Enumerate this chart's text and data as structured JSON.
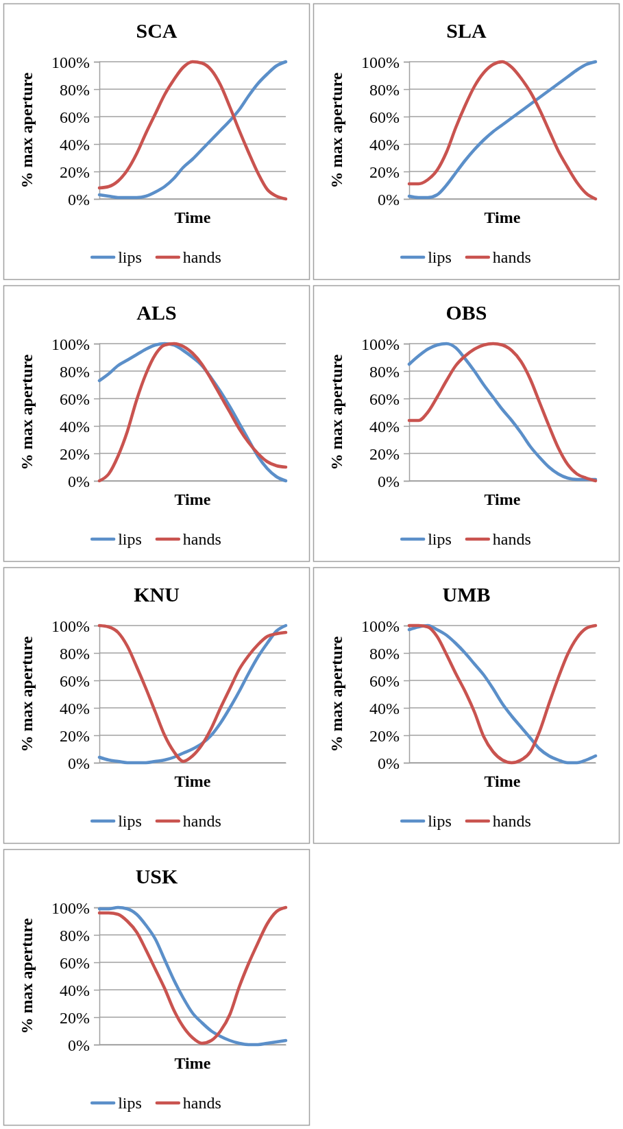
{
  "chart_data": [
    {
      "type": "line",
      "title": "SCA",
      "xlabel": "Time",
      "ylabel": "% max aperture",
      "categories": [
        null,
        null,
        null,
        null,
        null,
        null,
        null,
        null,
        null,
        null,
        null,
        null,
        null,
        null,
        null,
        null,
        null,
        null,
        null,
        null,
        null
      ],
      "series": [
        {
          "name": "lips",
          "color": "#5b8fc9",
          "values": [
            3,
            2,
            1,
            1,
            1,
            2,
            5,
            9,
            15,
            23,
            29,
            36,
            43,
            50,
            57,
            65,
            75,
            84,
            91,
            97,
            100
          ]
        },
        {
          "name": "hands",
          "color": "#c9534f",
          "values": [
            8,
            9,
            13,
            21,
            33,
            48,
            62,
            76,
            87,
            96,
            100,
            99,
            94,
            83,
            67,
            50,
            34,
            19,
            7,
            2,
            0
          ]
        }
      ],
      "ylim": [
        0,
        100
      ],
      "yticks": [
        {
          "value": 0,
          "label": "0%"
        },
        {
          "value": 20,
          "label": "20%"
        },
        {
          "value": 40,
          "label": "40%"
        },
        {
          "value": 60,
          "label": "60%"
        },
        {
          "value": 80,
          "label": "80%"
        },
        {
          "value": 100,
          "label": "100%"
        }
      ],
      "grid": "y",
      "legend": "bottom",
      "tick_labels": "y"
    },
    {
      "type": "line",
      "title": "SLA",
      "xlabel": "Time",
      "ylabel": "% max aperture",
      "categories": [
        null,
        null,
        null,
        null,
        null,
        null,
        null,
        null,
        null,
        null,
        null,
        null,
        null,
        null,
        null,
        null,
        null,
        null,
        null,
        null,
        null
      ],
      "series": [
        {
          "name": "lips",
          "color": "#5b8fc9",
          "values": [
            2,
            1,
            1,
            3,
            10,
            19,
            28,
            36,
            43,
            49,
            54,
            59,
            64,
            69,
            74,
            79,
            84,
            89,
            94,
            98,
            100
          ]
        },
        {
          "name": "hands",
          "color": "#c9534f",
          "values": [
            11,
            11,
            14,
            21,
            34,
            52,
            68,
            82,
            92,
            98,
            100,
            96,
            88,
            78,
            65,
            50,
            35,
            23,
            12,
            4,
            0
          ]
        }
      ],
      "ylim": [
        0,
        100
      ],
      "yticks": [
        {
          "value": 0,
          "label": "0%"
        },
        {
          "value": 20,
          "label": "20%"
        },
        {
          "value": 40,
          "label": "40%"
        },
        {
          "value": 60,
          "label": "60%"
        },
        {
          "value": 80,
          "label": "80%"
        },
        {
          "value": 100,
          "label": "100%"
        }
      ],
      "grid": "y",
      "legend": "bottom",
      "tick_labels": "y"
    },
    {
      "type": "line",
      "title": "ALS",
      "xlabel": "Time",
      "ylabel": "% max aperture",
      "categories": [
        null,
        null,
        null,
        null,
        null,
        null,
        null,
        null,
        null,
        null,
        null,
        null,
        null,
        null,
        null,
        null,
        null,
        null,
        null,
        null,
        null
      ],
      "series": [
        {
          "name": "lips",
          "color": "#5b8fc9",
          "values": [
            73,
            78,
            84,
            88,
            92,
            96,
            99,
            100,
            99,
            95,
            90,
            84,
            75,
            65,
            54,
            42,
            30,
            18,
            9,
            3,
            0
          ]
        },
        {
          "name": "hands",
          "color": "#c9534f",
          "values": [
            0,
            5,
            18,
            36,
            59,
            78,
            92,
            99,
            100,
            98,
            93,
            85,
            74,
            62,
            50,
            38,
            28,
            20,
            14,
            11,
            10
          ]
        }
      ],
      "ylim": [
        0,
        100
      ],
      "yticks": [
        {
          "value": 0,
          "label": "0%"
        },
        {
          "value": 20,
          "label": "20%"
        },
        {
          "value": 40,
          "label": "40%"
        },
        {
          "value": 60,
          "label": "60%"
        },
        {
          "value": 80,
          "label": "80%"
        },
        {
          "value": 100,
          "label": "100%"
        }
      ],
      "grid": "y",
      "legend": "bottom",
      "tick_labels": "y"
    },
    {
      "type": "line",
      "title": "OBS",
      "xlabel": "Time",
      "ylabel": "% max aperture",
      "categories": [
        null,
        null,
        null,
        null,
        null,
        null,
        null,
        null,
        null,
        null,
        null,
        null,
        null,
        null,
        null,
        null,
        null,
        null,
        null,
        null,
        null
      ],
      "series": [
        {
          "name": "lips",
          "color": "#5b8fc9",
          "values": [
            85,
            91,
            96,
            99,
            100,
            97,
            89,
            80,
            70,
            61,
            52,
            44,
            35,
            25,
            17,
            10,
            5,
            2,
            1,
            1,
            1
          ]
        },
        {
          "name": "hands",
          "color": "#c9534f",
          "values": [
            44,
            44,
            50,
            61,
            73,
            84,
            91,
            96,
            99,
            100,
            99,
            95,
            87,
            74,
            57,
            40,
            24,
            12,
            5,
            2,
            0
          ]
        }
      ],
      "ylim": [
        0,
        100
      ],
      "yticks": [
        {
          "value": 0,
          "label": "0%"
        },
        {
          "value": 20,
          "label": "20%"
        },
        {
          "value": 40,
          "label": "40%"
        },
        {
          "value": 60,
          "label": "60%"
        },
        {
          "value": 80,
          "label": "80%"
        },
        {
          "value": 100,
          "label": "100%"
        }
      ],
      "grid": "y",
      "legend": "bottom",
      "tick_labels": "y"
    },
    {
      "type": "line",
      "title": "KNU",
      "xlabel": "Time",
      "ylabel": "% max aperture",
      "categories": [
        null,
        null,
        null,
        null,
        null,
        null,
        null,
        null,
        null,
        null,
        null,
        null,
        null,
        null,
        null,
        null,
        null,
        null,
        null,
        null,
        null
      ],
      "series": [
        {
          "name": "lips",
          "color": "#5b8fc9",
          "values": [
            4,
            2,
            1,
            0,
            0,
            0,
            1,
            2,
            4,
            7,
            10,
            14,
            20,
            29,
            40,
            52,
            65,
            77,
            87,
            96,
            100
          ]
        },
        {
          "name": "hands",
          "color": "#c9534f",
          "values": [
            100,
            99,
            95,
            85,
            70,
            54,
            37,
            20,
            8,
            1,
            5,
            13,
            25,
            40,
            54,
            68,
            78,
            86,
            92,
            94,
            95
          ]
        }
      ],
      "ylim": [
        0,
        100
      ],
      "yticks": [
        {
          "value": 0,
          "label": "0%"
        },
        {
          "value": 20,
          "label": "20%"
        },
        {
          "value": 40,
          "label": "40%"
        },
        {
          "value": 60,
          "label": "60%"
        },
        {
          "value": 80,
          "label": "80%"
        },
        {
          "value": 100,
          "label": "100%"
        }
      ],
      "grid": "y",
      "legend": "bottom",
      "tick_labels": "y"
    },
    {
      "type": "line",
      "title": "UMB",
      "xlabel": "Time",
      "ylabel": "% max aperture",
      "categories": [
        null,
        null,
        null,
        null,
        null,
        null,
        null,
        null,
        null,
        null,
        null,
        null,
        null,
        null,
        null,
        null,
        null,
        null,
        null,
        null,
        null
      ],
      "series": [
        {
          "name": "lips",
          "color": "#5b8fc9",
          "values": [
            97,
            99,
            100,
            97,
            93,
            87,
            80,
            72,
            64,
            54,
            43,
            34,
            26,
            18,
            10,
            5,
            2,
            0,
            0,
            2,
            5
          ]
        },
        {
          "name": "hands",
          "color": "#c9534f",
          "values": [
            100,
            100,
            99,
            92,
            79,
            65,
            52,
            37,
            19,
            8,
            2,
            0,
            2,
            8,
            23,
            43,
            62,
            79,
            91,
            98,
            100
          ]
        }
      ],
      "ylim": [
        0,
        100
      ],
      "yticks": [
        {
          "value": 0,
          "label": "0%"
        },
        {
          "value": 20,
          "label": "20%"
        },
        {
          "value": 40,
          "label": "40%"
        },
        {
          "value": 60,
          "label": "60%"
        },
        {
          "value": 80,
          "label": "80%"
        },
        {
          "value": 100,
          "label": "100%"
        }
      ],
      "grid": "y",
      "legend": "bottom",
      "tick_labels": "y"
    },
    {
      "type": "line",
      "title": "USK",
      "xlabel": "Time",
      "ylabel": "% max aperture",
      "categories": [
        null,
        null,
        null,
        null,
        null,
        null,
        null,
        null,
        null,
        null,
        null,
        null,
        null,
        null,
        null,
        null,
        null,
        null,
        null,
        null,
        null
      ],
      "series": [
        {
          "name": "lips",
          "color": "#5b8fc9",
          "values": [
            99,
            99,
            100,
            99,
            95,
            87,
            77,
            62,
            47,
            34,
            23,
            16,
            10,
            6,
            3,
            1,
            0,
            0,
            1,
            2,
            3
          ]
        },
        {
          "name": "hands",
          "color": "#c9534f",
          "values": [
            96,
            96,
            95,
            90,
            82,
            69,
            55,
            41,
            25,
            13,
            5,
            1,
            3,
            10,
            22,
            42,
            59,
            74,
            88,
            97,
            100
          ]
        }
      ],
      "ylim": [
        0,
        100
      ],
      "yticks": [
        {
          "value": 0,
          "label": "0%"
        },
        {
          "value": 20,
          "label": "20%"
        },
        {
          "value": 40,
          "label": "40%"
        },
        {
          "value": 60,
          "label": "60%"
        },
        {
          "value": 80,
          "label": "80%"
        },
        {
          "value": 100,
          "label": "100%"
        }
      ],
      "grid": "y",
      "legend": "bottom",
      "tick_labels": "y"
    }
  ]
}
